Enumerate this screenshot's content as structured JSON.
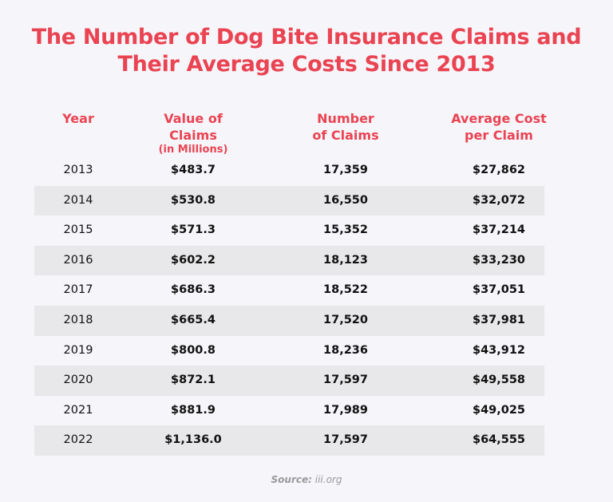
{
  "chart_data": {
    "type": "table",
    "title_lines": [
      "The Number of Dog Bite Insurance Claims and",
      "Their Average Costs Since 2013"
    ],
    "columns": [
      {
        "lines": [
          "Year"
        ],
        "sub": ""
      },
      {
        "lines": [
          "Value of",
          "Claims"
        ],
        "sub": "(in Millions)"
      },
      {
        "lines": [
          "Number",
          "of Claims"
        ],
        "sub": ""
      },
      {
        "lines": [
          "Average Cost",
          "per Claim"
        ],
        "sub": ""
      }
    ],
    "rows": [
      [
        "2013",
        "$483.7",
        "17,359",
        "$27,862"
      ],
      [
        "2014",
        "$530.8",
        "16,550",
        "$32,072"
      ],
      [
        "2015",
        "$571.3",
        "15,352",
        "$37,214"
      ],
      [
        "2016",
        "$602.2",
        "18,123",
        "$33,230"
      ],
      [
        "2017",
        "$686.3",
        "18,522",
        "$37,051"
      ],
      [
        "2018",
        "$665.4",
        "17,520",
        "$37,981"
      ],
      [
        "2019",
        "$800.8",
        "18,236",
        "$43,912"
      ],
      [
        "2020",
        "$872.1",
        "17,597",
        "$49,558"
      ],
      [
        "2021",
        "$881.9",
        "17,989",
        "$49,025"
      ],
      [
        "2022",
        "$1,136.0",
        "17,597",
        "$64,555"
      ]
    ],
    "source_label": "Source:",
    "source_value": "iii.org",
    "colors": {
      "accent": "#ea4452",
      "stripe": "#e8e8ea",
      "background": "#f5f5fa"
    }
  }
}
